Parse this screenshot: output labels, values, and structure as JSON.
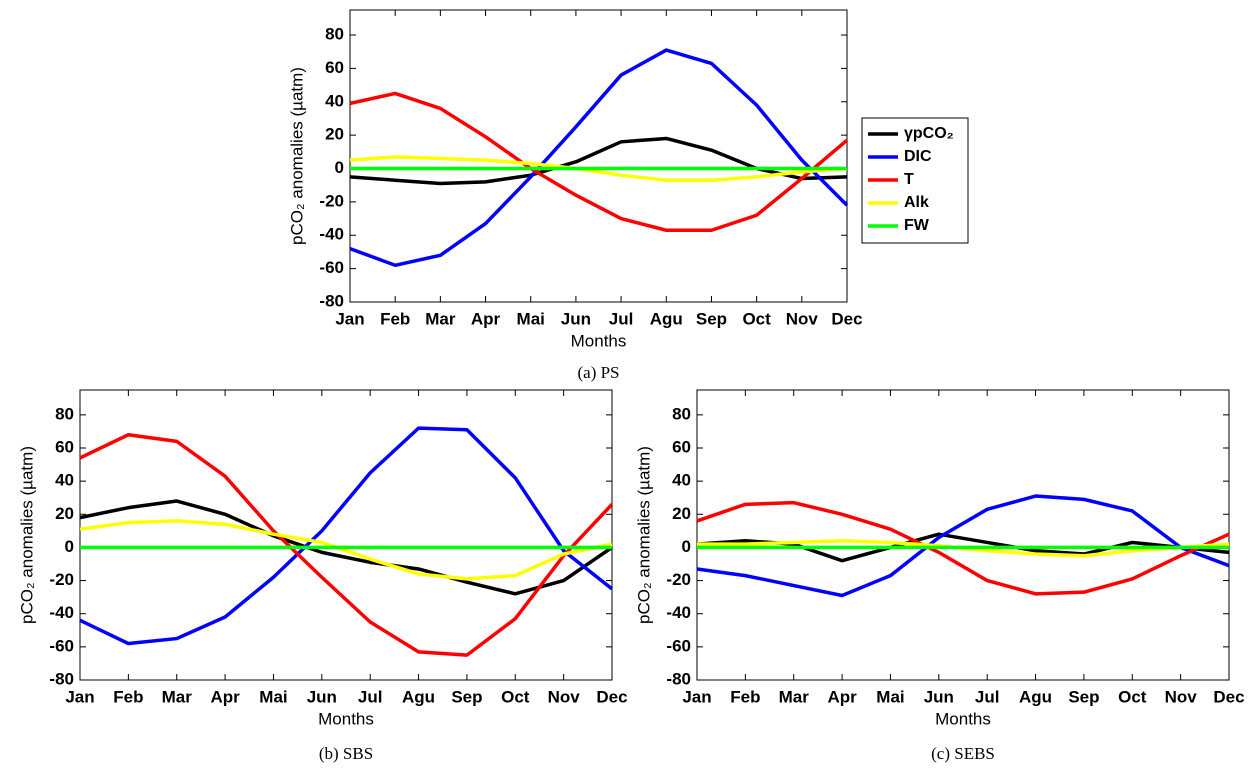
{
  "chart_data": [
    {
      "type": "line",
      "caption": "(a) PS",
      "xlabel": "Months",
      "ylabel": "pCO₂ anomalies (µatm)",
      "categories": [
        "Jan",
        "Feb",
        "Mar",
        "Apr",
        "Mai",
        "Jun",
        "Jul",
        "Agu",
        "Sep",
        "Oct",
        "Nov",
        "Dec"
      ],
      "ylim": [
        -80,
        95
      ],
      "yticks": [
        -80,
        -60,
        -40,
        -20,
        0,
        20,
        40,
        60,
        80
      ],
      "legend": "outside-right",
      "series": [
        {
          "name": "γpCO₂",
          "color": "#000000",
          "values": [
            -5,
            -7,
            -9,
            -8,
            -4,
            4,
            16,
            18,
            11,
            0,
            -6,
            -5
          ]
        },
        {
          "name": "DIC",
          "color": "#0000ff",
          "values": [
            -48,
            -58,
            -52,
            -33,
            -5,
            25,
            56,
            71,
            63,
            38,
            5,
            -22
          ]
        },
        {
          "name": "T",
          "color": "#ff0000",
          "values": [
            39,
            45,
            36,
            19,
            0,
            -16,
            -30,
            -37,
            -37,
            -28,
            -6,
            17
          ]
        },
        {
          "name": "Alk",
          "color": "#ffff00",
          "values": [
            5,
            7,
            6,
            5,
            3,
            0,
            -4,
            -7,
            -7,
            -5,
            -2,
            0
          ]
        },
        {
          "name": "FW",
          "color": "#00ff00",
          "values": [
            0,
            0,
            0,
            0,
            0,
            0,
            0,
            0,
            0,
            0,
            0,
            0
          ]
        }
      ]
    },
    {
      "type": "line",
      "caption": "(b) SBS",
      "xlabel": "Months",
      "ylabel": "pCO₂ anomalies (µatm)",
      "categories": [
        "Jan",
        "Feb",
        "Mar",
        "Apr",
        "Mai",
        "Jun",
        "Jul",
        "Agu",
        "Sep",
        "Oct",
        "Nov",
        "Dec"
      ],
      "ylim": [
        -80,
        95
      ],
      "yticks": [
        -80,
        -60,
        -40,
        -20,
        0,
        20,
        40,
        60,
        80
      ],
      "series": [
        {
          "color": "#000000",
          "values": [
            18,
            24,
            28,
            20,
            7,
            -3,
            -9,
            -13,
            -21,
            -28,
            -20,
            0
          ]
        },
        {
          "color": "#0000ff",
          "values": [
            -44,
            -58,
            -55,
            -42,
            -18,
            10,
            45,
            72,
            71,
            42,
            -2,
            -25
          ]
        },
        {
          "color": "#ff0000",
          "values": [
            54,
            68,
            64,
            43,
            10,
            -18,
            -45,
            -63,
            -65,
            -43,
            -5,
            26
          ]
        },
        {
          "color": "#ffff00",
          "values": [
            11,
            15,
            16,
            14,
            8,
            3,
            -7,
            -16,
            -19,
            -17,
            -4,
            2
          ]
        },
        {
          "color": "#00ff00",
          "values": [
            0,
            0,
            0,
            0,
            0,
            0,
            0,
            0,
            0,
            0,
            0,
            0
          ]
        }
      ]
    },
    {
      "type": "line",
      "caption": "(c) SEBS",
      "xlabel": "Months",
      "ylabel": "pCO₂ anomalies (µatm)",
      "categories": [
        "Jan",
        "Feb",
        "Mar",
        "Apr",
        "Mai",
        "Jun",
        "Jul",
        "Agu",
        "Sep",
        "Oct",
        "Nov",
        "Dec"
      ],
      "ylim": [
        -80,
        95
      ],
      "yticks": [
        -80,
        -60,
        -40,
        -20,
        0,
        20,
        40,
        60,
        80
      ],
      "series": [
        {
          "color": "#000000",
          "values": [
            2,
            4,
            2,
            -8,
            0,
            8,
            3,
            -2,
            -4,
            3,
            0,
            -3
          ]
        },
        {
          "color": "#0000ff",
          "values": [
            -13,
            -17,
            -23,
            -29,
            -17,
            6,
            23,
            31,
            29,
            22,
            0,
            -11
          ]
        },
        {
          "color": "#ff0000",
          "values": [
            16,
            26,
            27,
            20,
            11,
            -3,
            -20,
            -28,
            -27,
            -19,
            -5,
            8
          ]
        },
        {
          "color": "#ffff00",
          "values": [
            2,
            2,
            3,
            4,
            3,
            1,
            -2,
            -4,
            -5,
            -2,
            0,
            2
          ]
        },
        {
          "color": "#00ff00",
          "values": [
            0,
            0,
            0,
            0,
            0,
            0,
            0,
            0,
            0,
            0,
            0,
            0
          ]
        }
      ]
    }
  ]
}
